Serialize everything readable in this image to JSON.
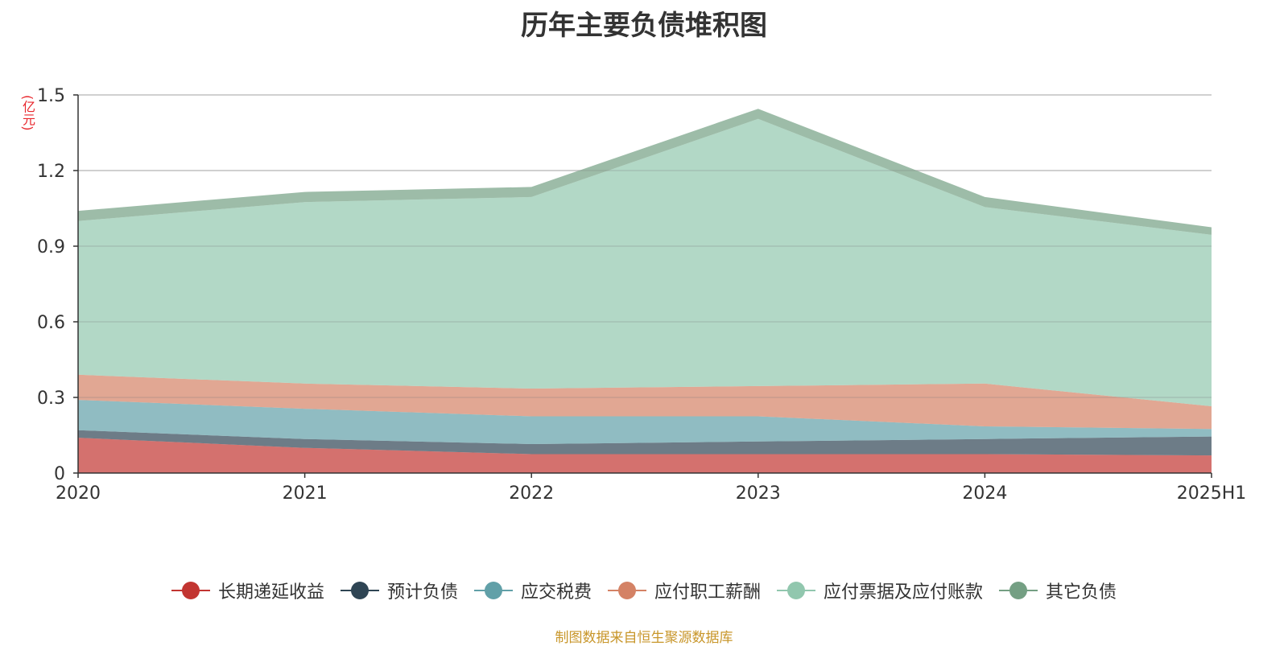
{
  "chart_data": {
    "type": "area",
    "stacked": true,
    "title": "历年主要负债堆积图",
    "ylabel": "(亿元)",
    "categories": [
      "2020",
      "2021",
      "2022",
      "2023",
      "2024",
      "2025H1"
    ],
    "ylim": [
      0,
      1.5
    ],
    "yticks": [
      "0",
      "0.3",
      "0.6",
      "0.9",
      "1.2",
      "1.5"
    ],
    "grid": true,
    "legend_position": "bottom",
    "series": [
      {
        "name": "长期递延收益",
        "color": "#c23531",
        "values": [
          0.14,
          0.1,
          0.075,
          0.075,
          0.075,
          0.07
        ]
      },
      {
        "name": "预计负债",
        "color": "#2f4554",
        "values": [
          0.03,
          0.035,
          0.04,
          0.05,
          0.06,
          0.075
        ]
      },
      {
        "name": "应交税费",
        "color": "#61a0a8",
        "values": [
          0.12,
          0.12,
          0.11,
          0.1,
          0.05,
          0.03
        ]
      },
      {
        "name": "应付职工薪酬",
        "color": "#d48265",
        "values": [
          0.1,
          0.1,
          0.11,
          0.12,
          0.17,
          0.09
        ]
      },
      {
        "name": "应付票据及应付账款",
        "color": "#91c7ae",
        "values": [
          0.61,
          0.72,
          0.76,
          1.06,
          0.7,
          0.68
        ]
      },
      {
        "name": "其它负债",
        "color": "#749f83",
        "values": [
          0.04,
          0.04,
          0.04,
          0.04,
          0.04,
          0.03
        ]
      }
    ]
  },
  "source_note": "制图数据来自恒生聚源数据库"
}
